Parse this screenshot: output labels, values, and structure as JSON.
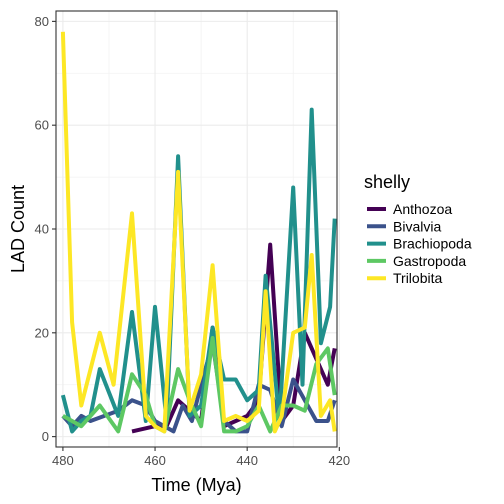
{
  "chart_data": {
    "type": "line",
    "title": "",
    "xlabel": "Time (Mya)",
    "ylabel": "LAD Count",
    "x_reversed": true,
    "xlim": [
      481.5,
      420.5
    ],
    "ylim": [
      -2,
      82
    ],
    "x_ticks": [
      480,
      460,
      440,
      420
    ],
    "y_ticks": [
      0,
      20,
      40,
      60,
      80
    ],
    "grid": true,
    "legend": {
      "title": "shelly",
      "position": "right"
    },
    "series": [
      {
        "name": "Anthozoa",
        "color": "#440154",
        "points": [
          [
            465,
            1
          ],
          [
            460,
            2
          ],
          [
            457.5,
            2
          ],
          [
            455,
            7
          ],
          [
            452.5,
            5
          ],
          [
            450,
            3
          ],
          [
            447.5,
            21
          ],
          [
            445,
            2
          ],
          [
            442.5,
            3
          ],
          [
            440,
            4
          ],
          [
            437.5,
            7
          ],
          [
            435,
            37
          ],
          [
            432.5,
            3
          ],
          [
            430,
            6
          ],
          [
            427.5,
            20
          ],
          [
            425,
            15
          ],
          [
            422.5,
            10
          ],
          [
            421,
            17
          ]
        ]
      },
      {
        "name": "Bivalvia",
        "color": "#3B528B",
        "points": [
          [
            480,
            4
          ],
          [
            478,
            2
          ],
          [
            476,
            4
          ],
          [
            474,
            3
          ],
          [
            471,
            4
          ],
          [
            468,
            5
          ],
          [
            465,
            7
          ],
          [
            462,
            6
          ],
          [
            460,
            3
          ],
          [
            458,
            2
          ],
          [
            456,
            1
          ],
          [
            454,
            6
          ],
          [
            452,
            3
          ],
          [
            450,
            10
          ],
          [
            447.5,
            18
          ],
          [
            445,
            3
          ],
          [
            442.5,
            1
          ],
          [
            440,
            1
          ],
          [
            437.5,
            10
          ],
          [
            435,
            9
          ],
          [
            432.5,
            2
          ],
          [
            430,
            11
          ],
          [
            427.5,
            7
          ],
          [
            425,
            3
          ],
          [
            422.5,
            3
          ],
          [
            421,
            7
          ]
        ]
      },
      {
        "name": "Brachiopoda",
        "color": "#21908C",
        "points": [
          [
            480,
            8
          ],
          [
            478,
            1
          ],
          [
            476,
            3
          ],
          [
            474,
            4
          ],
          [
            472,
            13
          ],
          [
            468,
            4
          ],
          [
            465,
            24
          ],
          [
            462,
            3
          ],
          [
            460,
            25
          ],
          [
            457.5,
            3
          ],
          [
            455,
            54
          ],
          [
            452.5,
            4
          ],
          [
            450,
            6
          ],
          [
            447.5,
            21
          ],
          [
            445,
            11
          ],
          [
            442.5,
            11
          ],
          [
            440,
            7
          ],
          [
            437.5,
            9
          ],
          [
            436,
            31
          ],
          [
            433,
            3
          ],
          [
            430,
            48
          ],
          [
            428,
            10
          ],
          [
            426,
            63
          ],
          [
            424,
            18
          ],
          [
            422,
            25
          ],
          [
            421,
            42
          ]
        ]
      },
      {
        "name": "Gastropoda",
        "color": "#5DC863",
        "points": [
          [
            480,
            4
          ],
          [
            478,
            3
          ],
          [
            476,
            2
          ],
          [
            474,
            4
          ],
          [
            472,
            6
          ],
          [
            468,
            1
          ],
          [
            465,
            12
          ],
          [
            462,
            8
          ],
          [
            460,
            2
          ],
          [
            458,
            1
          ],
          [
            455,
            13
          ],
          [
            452.5,
            7
          ],
          [
            450,
            2
          ],
          [
            447.5,
            19
          ],
          [
            445,
            1
          ],
          [
            442.5,
            1
          ],
          [
            440,
            2
          ],
          [
            437.5,
            6
          ],
          [
            435,
            1
          ],
          [
            432.5,
            6
          ],
          [
            430,
            6
          ],
          [
            427.5,
            5
          ],
          [
            425,
            14
          ],
          [
            422.5,
            17
          ],
          [
            421,
            8
          ]
        ]
      },
      {
        "name": "Trilobita",
        "color": "#FDE725",
        "points": [
          [
            480,
            78
          ],
          [
            478,
            22
          ],
          [
            476,
            6
          ],
          [
            472,
            20
          ],
          [
            469,
            10
          ],
          [
            465,
            43
          ],
          [
            462,
            4
          ],
          [
            460,
            2
          ],
          [
            458,
            1
          ],
          [
            455,
            51
          ],
          [
            452.5,
            5
          ],
          [
            450,
            12
          ],
          [
            447.5,
            33
          ],
          [
            445,
            3
          ],
          [
            442.5,
            4
          ],
          [
            440,
            3
          ],
          [
            437.5,
            5
          ],
          [
            436,
            28
          ],
          [
            434,
            1
          ],
          [
            432.5,
            4
          ],
          [
            430,
            20
          ],
          [
            427.5,
            21
          ],
          [
            426,
            35
          ],
          [
            424,
            4
          ],
          [
            422,
            7
          ],
          [
            421,
            1
          ]
        ]
      }
    ]
  }
}
